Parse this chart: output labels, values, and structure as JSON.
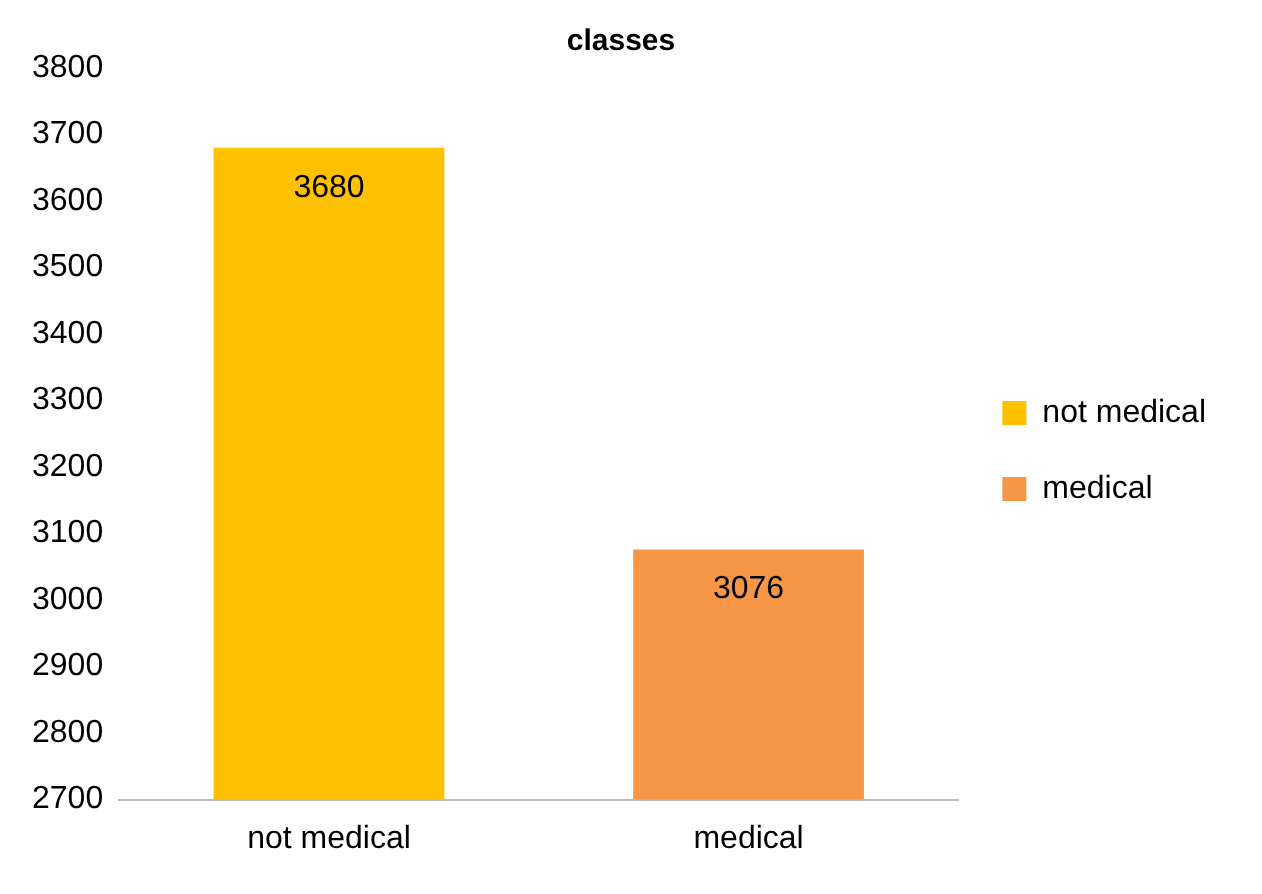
{
  "chart_data": {
    "type": "bar",
    "title": "classes",
    "categories": [
      "not medical",
      "medical"
    ],
    "series": [
      {
        "name": "not medical",
        "color": "#ffc000",
        "values": [
          3680,
          null
        ]
      },
      {
        "name": "medical",
        "color": "#f79646",
        "values": [
          null,
          3076
        ]
      }
    ],
    "ylim": [
      2700,
      3800
    ],
    "yticks": [
      2700,
      2800,
      2900,
      3000,
      3100,
      3200,
      3300,
      3400,
      3500,
      3600,
      3700,
      3800
    ],
    "grid": false,
    "legend": "right",
    "data_labels": true
  }
}
